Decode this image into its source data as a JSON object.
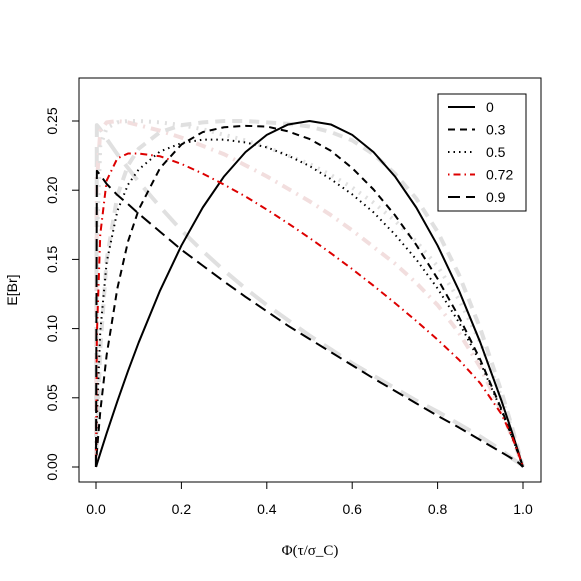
{
  "chart_data": {
    "type": "line",
    "title": "",
    "xlabel": "Φ(τ/σ_C)",
    "ylabel": "E[Br]",
    "xlim": [
      0,
      1
    ],
    "ylim": [
      0,
      0.25
    ],
    "x_ticks": [
      "0.0",
      "0.2",
      "0.4",
      "0.6",
      "0.8",
      "1.0"
    ],
    "y_ticks": [
      "0.00",
      "0.05",
      "0.10",
      "0.15",
      "0.20",
      "0.25"
    ],
    "legend_position": "top-right",
    "grid": false,
    "x": [
      0.0,
      0.002,
      0.01,
      0.025,
      0.05,
      0.075,
      0.1,
      0.15,
      0.2,
      0.25,
      0.3,
      0.35,
      0.4,
      0.45,
      0.5,
      0.55,
      0.6,
      0.65,
      0.7,
      0.75,
      0.8,
      0.85,
      0.9,
      0.95,
      0.975,
      0.99,
      1.0
    ],
    "series": [
      {
        "name": "0",
        "color": "#000000",
        "style": "solid",
        "values": [
          0.0,
          0.002,
          0.0099,
          0.0244,
          0.0475,
          0.0694,
          0.09,
          0.1275,
          0.16,
          0.1875,
          0.21,
          0.2275,
          0.24,
          0.2475,
          0.25,
          0.2475,
          0.24,
          0.2275,
          0.21,
          0.1875,
          0.16,
          0.1275,
          0.09,
          0.0475,
          0.0244,
          0.0099,
          0.0
        ]
      },
      {
        "name": "0.3",
        "color": "#000000",
        "style": "dashed",
        "values": [
          0.0,
          0.011,
          0.04,
          0.081,
          0.129,
          0.163,
          0.186,
          0.216,
          0.233,
          0.242,
          0.2455,
          0.2465,
          0.246,
          0.2425,
          0.237,
          0.2285,
          0.216,
          0.2005,
          0.182,
          0.1605,
          0.136,
          0.1085,
          0.0775,
          0.0415,
          0.0215,
          0.0089,
          0.0
        ]
      },
      {
        "name": "0.5",
        "color": "#000000",
        "style": "dotted",
        "values": [
          0.0,
          0.035,
          0.098,
          0.148,
          0.185,
          0.204,
          0.215,
          0.228,
          0.234,
          0.2365,
          0.2365,
          0.2345,
          0.231,
          0.225,
          0.2175,
          0.208,
          0.197,
          0.184,
          0.168,
          0.15,
          0.129,
          0.1045,
          0.0755,
          0.0405,
          0.021,
          0.0087,
          0.0
        ]
      },
      {
        "name": "0.72",
        "color": "#dd0000",
        "style": "dashdot",
        "values": [
          0.0,
          0.095,
          0.168,
          0.207,
          0.223,
          0.2265,
          0.2265,
          0.2245,
          0.219,
          0.212,
          0.204,
          0.1955,
          0.186,
          0.176,
          0.1655,
          0.1545,
          0.143,
          0.131,
          0.1185,
          0.1055,
          0.092,
          0.0775,
          0.0605,
          0.038,
          0.0215,
          0.009,
          0.0
        ]
      },
      {
        "name": "0.9",
        "color": "#000000",
        "style": "longdash",
        "values": [
          0.0,
          0.214,
          0.211,
          0.2045,
          0.1965,
          0.19,
          0.183,
          0.17,
          0.157,
          0.1455,
          0.134,
          0.123,
          0.1125,
          0.102,
          0.0925,
          0.083,
          0.0735,
          0.064,
          0.055,
          0.046,
          0.037,
          0.0285,
          0.0195,
          0.0105,
          0.006,
          0.003,
          0.0
        ]
      }
    ],
    "background_curves": [
      {
        "color": "#e0e0e0",
        "style": "longdash",
        "values": [
          0.0,
          0.247,
          0.244,
          0.237,
          0.226,
          0.216,
          0.206,
          0.188,
          0.171,
          0.156,
          0.142,
          0.129,
          0.117,
          0.106,
          0.095,
          0.085,
          0.075,
          0.066,
          0.057,
          0.048,
          0.04,
          0.031,
          0.022,
          0.012,
          0.006,
          0.003,
          0.0
        ]
      },
      {
        "color": "#f2dede",
        "style": "dashdot",
        "values": [
          0.0,
          0.205,
          0.243,
          0.249,
          0.25,
          0.249,
          0.247,
          0.243,
          0.238,
          0.232,
          0.226,
          0.218,
          0.21,
          0.201,
          0.192,
          0.182,
          0.171,
          0.159,
          0.147,
          0.133,
          0.117,
          0.097,
          0.072,
          0.04,
          0.021,
          0.009,
          0.0
        ]
      },
      {
        "color": "#e0e0e0",
        "style": "dotted",
        "values": [
          0.0,
          0.16,
          0.232,
          0.245,
          0.249,
          0.25,
          0.25,
          0.249,
          0.247,
          0.244,
          0.24,
          0.236,
          0.231,
          0.225,
          0.219,
          0.211,
          0.202,
          0.191,
          0.178,
          0.163,
          0.145,
          0.121,
          0.09,
          0.05,
          0.026,
          0.011,
          0.0
        ]
      },
      {
        "color": "#e0e0e0",
        "style": "dashed",
        "values": [
          0.0,
          0.02,
          0.085,
          0.15,
          0.196,
          0.218,
          0.23,
          0.242,
          0.247,
          0.249,
          0.25,
          0.25,
          0.249,
          0.248,
          0.246,
          0.242,
          0.236,
          0.226,
          0.212,
          0.194,
          0.17,
          0.139,
          0.1,
          0.054,
          0.028,
          0.011,
          0.0
        ]
      }
    ]
  }
}
